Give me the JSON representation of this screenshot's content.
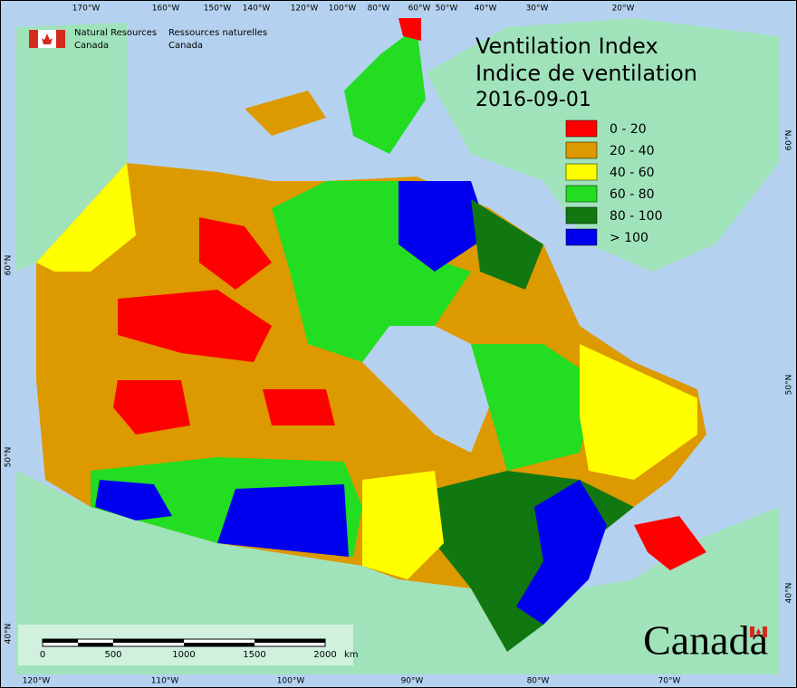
{
  "header": {
    "agency_en": [
      "Natural Resources",
      "Canada"
    ],
    "agency_fr": [
      "Ressources naturelles",
      "Canada"
    ]
  },
  "title": [
    "Ventilation Index",
    "Indice de ventilation",
    "2016-09-01"
  ],
  "legend": [
    {
      "label": "0 - 20",
      "color": "#ff0000"
    },
    {
      "label": "20 - 40",
      "color": "#dd9900"
    },
    {
      "label": "40 - 60",
      "color": "#ffff00"
    },
    {
      "label": "60 - 80",
      "color": "#22dd22"
    },
    {
      "label": "80 - 100",
      "color": "#117711"
    },
    {
      "label": "> 100",
      "color": "#0000ee"
    }
  ],
  "graticule": {
    "top": [
      "170°W",
      "160°W",
      "150°W",
      "140°W",
      "120°W",
      "100°W",
      "80°W",
      "60°W",
      "50°W",
      "40°W",
      "30°W",
      "20°W"
    ],
    "bottom": [
      "120°W",
      "110°W",
      "100°W",
      "90°W",
      "80°W",
      "70°W"
    ],
    "left": [
      "60°N",
      "50°N",
      "40°N"
    ],
    "right": [
      "60°N",
      "50°N",
      "40°N"
    ]
  },
  "scale_bar": {
    "labels": [
      "0",
      "500",
      "1000",
      "1500",
      "2000"
    ],
    "unit": "km"
  },
  "wordmark": "Canada"
}
